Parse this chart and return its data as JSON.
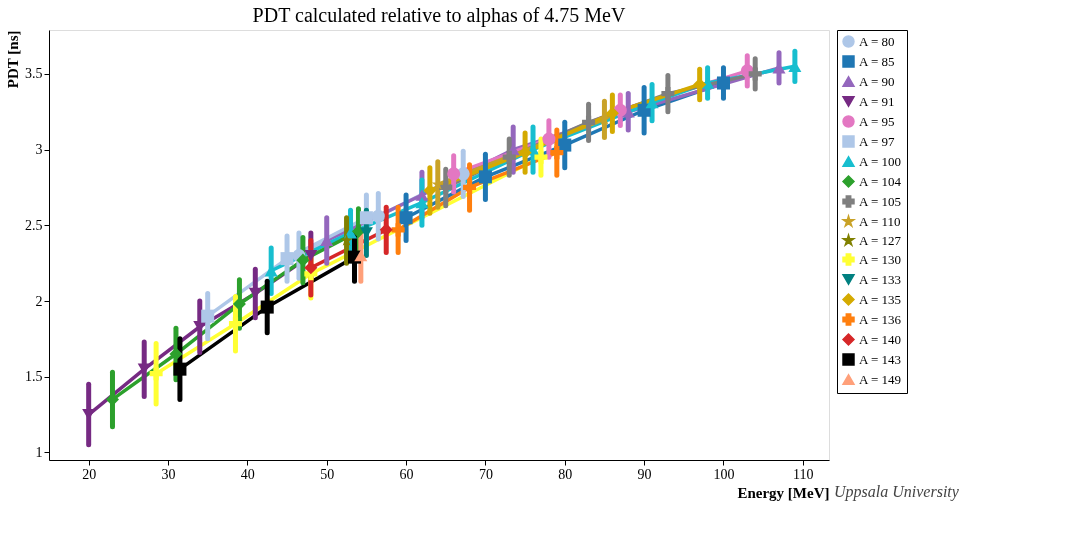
{
  "chart_data": {
    "type": "line",
    "title": "PDT calculated relative to alphas of 4.75 MeV",
    "xlabel": "Energy [MeV]",
    "ylabel": "PDT [ns]",
    "xlim": [
      15,
      113.3
    ],
    "xticks": [
      20,
      30,
      40,
      50,
      60,
      70,
      80,
      90,
      100,
      110
    ],
    "ylim": [
      0.95,
      3.79
    ],
    "yticks": [
      1,
      1.5,
      2,
      2.5,
      3,
      3.5
    ],
    "grid": false,
    "legend": "right",
    "line_style": "solid",
    "annotations": [
      "Uppsala University"
    ],
    "series": [
      {
        "name": "A = 80",
        "color": "#aec7e8",
        "marker": "circle",
        "x": [
          46.5,
          56.5,
          67.2
        ],
        "values": [
          2.3,
          2.56,
          2.84
        ],
        "errors": [
          0.15,
          0.15,
          0.15
        ]
      },
      {
        "name": "A = 85",
        "color": "#1f77b4",
        "marker": "square",
        "x": [
          60,
          70,
          80,
          90,
          100
        ],
        "values": [
          2.55,
          2.82,
          3.03,
          3.26,
          3.44
        ],
        "errors": [
          0.15,
          0.15,
          0.15,
          0.15,
          0.1
        ]
      },
      {
        "name": "A = 90",
        "color": "#9467bd",
        "marker": "triangle",
        "x": [
          50,
          62,
          73.5,
          88,
          107
        ],
        "values": [
          2.4,
          2.7,
          3.0,
          3.25,
          3.54
        ],
        "errors": [
          0.15,
          0.15,
          0.15,
          0.12,
          0.1
        ]
      },
      {
        "name": "A = 91",
        "color": "#762a83",
        "marker": "triangle-down",
        "x": [
          20,
          27,
          34,
          41,
          48
        ],
        "values": [
          1.25,
          1.55,
          1.83,
          2.05,
          2.3
        ],
        "errors": [
          0.2,
          0.18,
          0.17,
          0.16,
          0.15
        ]
      },
      {
        "name": "A = 95",
        "color": "#e377c2",
        "marker": "circle",
        "x": [
          66,
          78,
          87,
          103
        ],
        "values": [
          2.84,
          3.07,
          3.26,
          3.52
        ],
        "errors": [
          0.12,
          0.12,
          0.1,
          0.1
        ]
      },
      {
        "name": "A = 97",
        "color": "#aec7e8",
        "marker": "square",
        "x": [
          35,
          45,
          55
        ],
        "values": [
          1.9,
          2.28,
          2.55
        ],
        "errors": [
          0.15,
          0.15,
          0.15
        ]
      },
      {
        "name": "A = 100",
        "color": "#17becf",
        "marker": "triangle",
        "x": [
          43,
          53,
          62,
          76,
          91,
          98,
          109
        ],
        "values": [
          2.2,
          2.45,
          2.65,
          3.0,
          3.31,
          3.44,
          3.55
        ],
        "errors": [
          0.15,
          0.15,
          0.15,
          0.15,
          0.12,
          0.1,
          0.1
        ]
      },
      {
        "name": "A = 104",
        "color": "#2ca02c",
        "marker": "diamond",
        "x": [
          23,
          31,
          39,
          47,
          54
        ],
        "values": [
          1.35,
          1.65,
          1.98,
          2.27,
          2.46
        ],
        "errors": [
          0.18,
          0.17,
          0.16,
          0.15,
          0.15
        ]
      },
      {
        "name": "A = 105",
        "color": "#7f7f7f",
        "marker": "cross",
        "x": [
          65,
          73,
          83,
          93,
          104
        ],
        "values": [
          2.75,
          2.95,
          3.18,
          3.37,
          3.5
        ],
        "errors": [
          0.12,
          0.12,
          0.12,
          0.12,
          0.1
        ]
      },
      {
        "name": "A = 110",
        "color": "#c9a227",
        "marker": "star",
        "x": [
          64,
          85
        ],
        "values": [
          2.77,
          3.2
        ],
        "errors": [
          0.15,
          0.12
        ]
      },
      {
        "name": "A = 127",
        "color": "#808000",
        "marker": "star",
        "x": [
          52.5
        ],
        "values": [
          2.4
        ],
        "errors": [
          0.15
        ]
      },
      {
        "name": "A = 130",
        "color": "#ffff33",
        "marker": "cross",
        "x": [
          28.5,
          38.5,
          48,
          77
        ],
        "values": [
          1.52,
          1.85,
          2.18,
          2.95
        ],
        "errors": [
          0.2,
          0.18,
          0.16,
          0.12
        ]
      },
      {
        "name": "A = 133",
        "color": "#008080",
        "marker": "triangle-down",
        "x": [
          55
        ],
        "values": [
          2.45
        ],
        "errors": [
          0.15
        ]
      },
      {
        "name": "A = 135",
        "color": "#d4aa00",
        "marker": "diamond",
        "x": [
          63,
          75,
          86,
          97
        ],
        "values": [
          2.73,
          2.98,
          3.24,
          3.43
        ],
        "errors": [
          0.15,
          0.13,
          0.12,
          0.1
        ]
      },
      {
        "name": "A = 136",
        "color": "#ff7f0e",
        "marker": "cross",
        "x": [
          59,
          68,
          79
        ],
        "values": [
          2.47,
          2.75,
          2.98
        ],
        "errors": [
          0.15,
          0.15,
          0.15
        ]
      },
      {
        "name": "A = 140",
        "color": "#d62728",
        "marker": "diamond",
        "x": [
          48,
          57.5
        ],
        "values": [
          2.22,
          2.47
        ],
        "errors": [
          0.18,
          0.15
        ]
      },
      {
        "name": "A = 143",
        "color": "#000000",
        "marker": "square",
        "x": [
          31.5,
          42.5,
          53.5
        ],
        "values": [
          1.55,
          1.96,
          2.29
        ],
        "errors": [
          0.2,
          0.17,
          0.16
        ]
      },
      {
        "name": "A = 149",
        "color": "#ffa07a",
        "marker": "triangle",
        "x": [
          54.3
        ],
        "values": [
          2.3
        ],
        "errors": [
          0.17
        ]
      }
    ]
  }
}
